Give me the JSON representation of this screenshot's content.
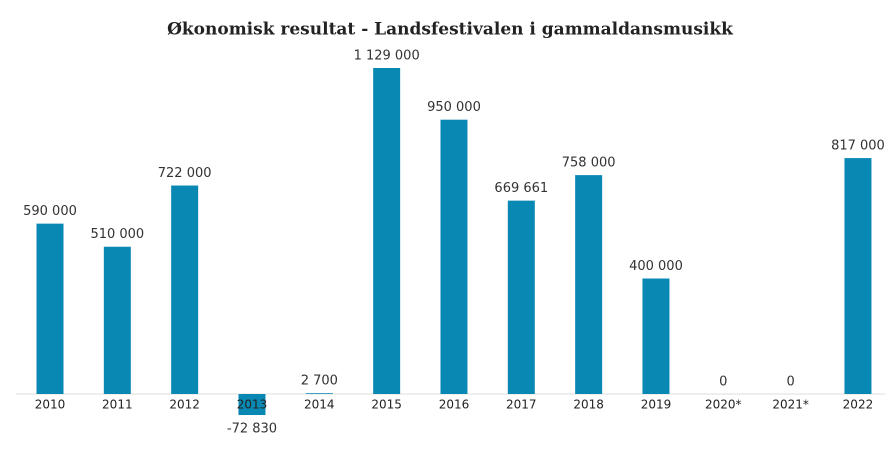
{
  "chart_data": {
    "type": "bar",
    "title": "Økonomisk resultat - Landsfestivalen i gammaldansmusikk",
    "categories": [
      "2010",
      "2011",
      "2012",
      "2013",
      "2014",
      "2015",
      "2016",
      "2017",
      "2018",
      "2019",
      "2020*",
      "2021*",
      "2022"
    ],
    "values": [
      590000,
      510000,
      722000,
      -72830,
      2700,
      1129000,
      950000,
      669661,
      758000,
      400000,
      0,
      0,
      817000
    ],
    "value_labels": [
      "590 000",
      "510 000",
      "722 000",
      "-72 830",
      "2 700",
      "1 129 000",
      "950 000",
      "669 661",
      "758 000",
      "400 000",
      "0",
      "0",
      "817 000"
    ],
    "color": "#0a88b4"
  }
}
